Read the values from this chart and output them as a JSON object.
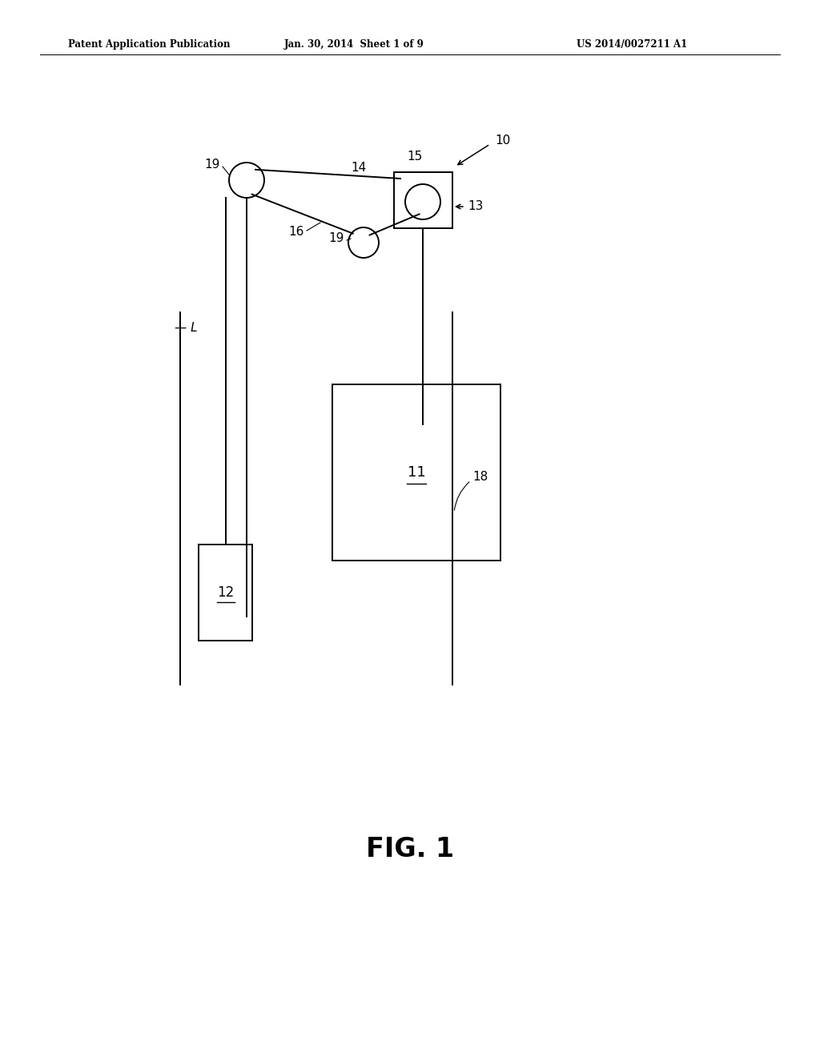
{
  "header_left": "Patent Application Publication",
  "header_mid": "Jan. 30, 2014  Sheet 1 of 9",
  "header_right": "US 2014/0027211 A1",
  "figure_label": "FIG. 1",
  "bg_color": "#ffffff",
  "line_color": "#000000"
}
